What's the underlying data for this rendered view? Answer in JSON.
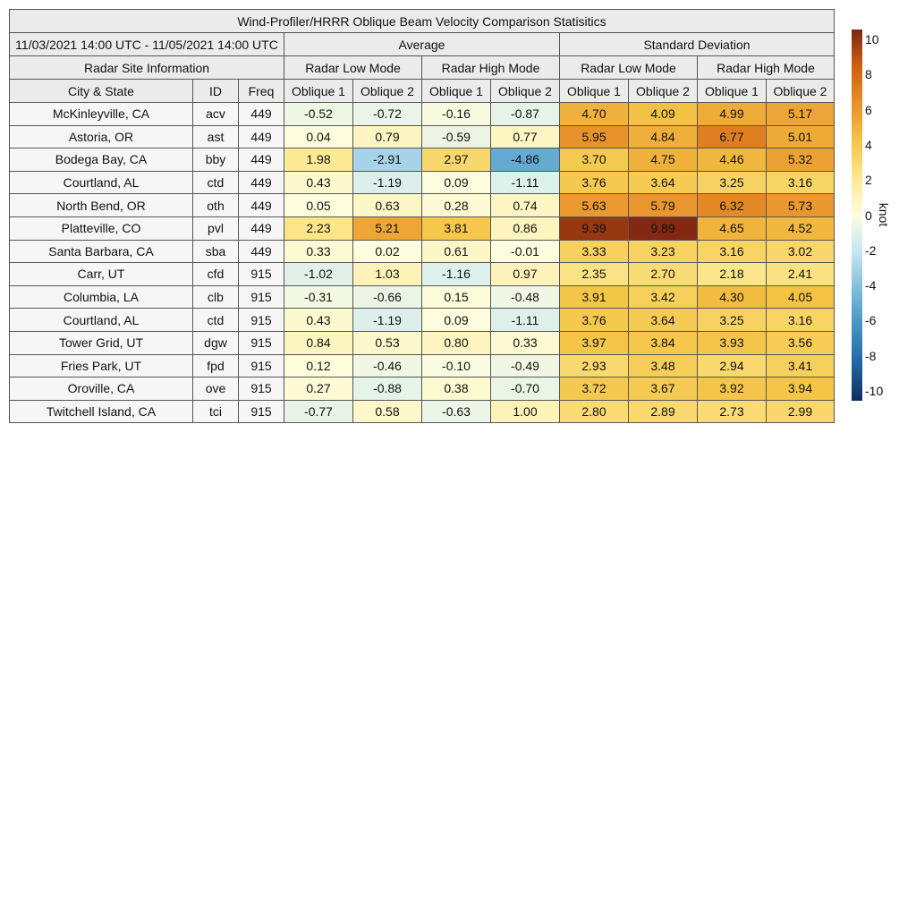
{
  "chart_data": {
    "type": "table",
    "title": "Wind-Profiler/HRRR Oblique Beam Velocity Comparison Statisitics",
    "date_range": "11/03/2021 14:00 UTC - 11/05/2021 14:00 UTC",
    "groups": [
      "Average",
      "Standard Deviation"
    ],
    "modes": [
      "Radar Low Mode",
      "Radar High Mode",
      "Radar Low Mode",
      "Radar High Mode"
    ],
    "site_info_label": "Radar Site Information",
    "columns": [
      "City & State",
      "ID",
      "Freq",
      "Oblique 1",
      "Oblique 2",
      "Oblique 1",
      "Oblique 2",
      "Oblique 1",
      "Oblique 2",
      "Oblique 1",
      "Oblique 2"
    ],
    "rows": [
      {
        "city": "McKinleyville, CA",
        "id": "acv",
        "freq": "449",
        "values": [
          -0.52,
          -0.72,
          -0.16,
          -0.87,
          4.7,
          4.09,
          4.99,
          5.17
        ]
      },
      {
        "city": "Astoria, OR",
        "id": "ast",
        "freq": "449",
        "values": [
          0.04,
          0.79,
          -0.59,
          0.77,
          5.95,
          4.84,
          6.77,
          5.01
        ]
      },
      {
        "city": "Bodega Bay, CA",
        "id": "bby",
        "freq": "449",
        "values": [
          1.98,
          -2.91,
          2.97,
          -4.86,
          3.7,
          4.75,
          4.46,
          5.32
        ]
      },
      {
        "city": "Courtland, AL",
        "id": "ctd",
        "freq": "449",
        "values": [
          0.43,
          -1.19,
          0.09,
          -1.11,
          3.76,
          3.64,
          3.25,
          3.16
        ]
      },
      {
        "city": "North Bend, OR",
        "id": "oth",
        "freq": "449",
        "values": [
          0.05,
          0.63,
          0.28,
          0.74,
          5.63,
          5.79,
          6.32,
          5.73
        ]
      },
      {
        "city": "Platteville, CO",
        "id": "pvl",
        "freq": "449",
        "values": [
          2.23,
          5.21,
          3.81,
          0.86,
          9.39,
          9.89,
          4.65,
          4.52
        ]
      },
      {
        "city": "Santa Barbara, CA",
        "id": "sba",
        "freq": "449",
        "values": [
          0.33,
          0.02,
          0.61,
          -0.01,
          3.33,
          3.23,
          3.16,
          3.02
        ]
      },
      {
        "city": "Carr, UT",
        "id": "cfd",
        "freq": "915",
        "values": [
          -1.02,
          1.03,
          -1.16,
          0.97,
          2.35,
          2.7,
          2.18,
          2.41
        ]
      },
      {
        "city": "Columbia, LA",
        "id": "clb",
        "freq": "915",
        "values": [
          -0.31,
          -0.66,
          0.15,
          -0.48,
          3.91,
          3.42,
          4.3,
          4.05
        ]
      },
      {
        "city": "Courtland, AL",
        "id": "ctd",
        "freq": "915",
        "values": [
          0.43,
          -1.19,
          0.09,
          -1.11,
          3.76,
          3.64,
          3.25,
          3.16
        ]
      },
      {
        "city": "Tower Grid, UT",
        "id": "dgw",
        "freq": "915",
        "values": [
          0.84,
          0.53,
          0.8,
          0.33,
          3.97,
          3.84,
          3.93,
          3.56
        ]
      },
      {
        "city": "Fries Park, UT",
        "id": "fpd",
        "freq": "915",
        "values": [
          0.12,
          -0.46,
          -0.1,
          -0.49,
          2.93,
          3.48,
          2.94,
          3.41
        ]
      },
      {
        "city": "Oroville, CA",
        "id": "ove",
        "freq": "915",
        "values": [
          0.27,
          -0.88,
          0.38,
          -0.7,
          3.72,
          3.67,
          3.92,
          3.94
        ]
      },
      {
        "city": "Twitchell Island, CA",
        "id": "tci",
        "freq": "915",
        "values": [
          -0.77,
          0.58,
          -0.63,
          1.0,
          2.8,
          2.89,
          2.73,
          2.99
        ]
      }
    ],
    "colorbar": {
      "label": "knot",
      "range": [
        -10,
        10
      ],
      "ticks": [
        "10",
        "8",
        "6",
        "4",
        "2",
        "0",
        "-2",
        "-4",
        "-6",
        "-8",
        "-10"
      ],
      "colors": [
        "#0b2d5c",
        "#2166a6",
        "#4393c3",
        "#7fbcdb",
        "#c6e6f2",
        "#fdfde0",
        "#fde992",
        "#f4c445",
        "#e8912a",
        "#d0600f",
        "#7e2612"
      ]
    }
  }
}
